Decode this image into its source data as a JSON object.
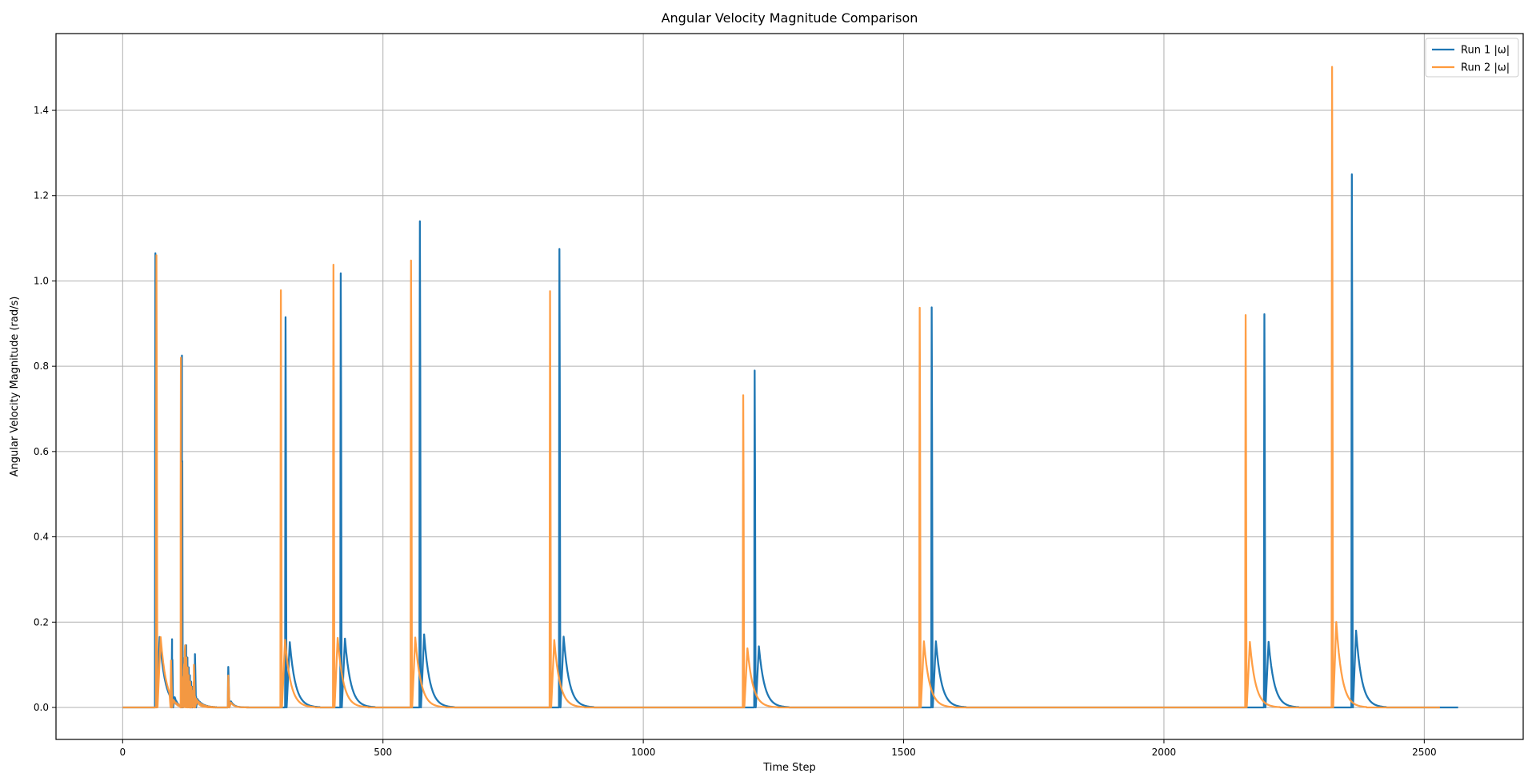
{
  "chart_data": {
    "type": "line",
    "title": "Angular Velocity Magnitude Comparison",
    "xlabel": "Time Step",
    "ylabel": "Angular Velocity Magnitude (rad/s)",
    "xlim": [
      -128,
      2690
    ],
    "ylim": [
      -0.075,
      1.58
    ],
    "x_ticks": [
      0,
      500,
      1000,
      1500,
      2000,
      2500
    ],
    "y_ticks": [
      0.0,
      0.2,
      0.4,
      0.6,
      0.8,
      1.0,
      1.2,
      1.4
    ],
    "y_tick_labels": [
      "0.0",
      "0.2",
      "0.4",
      "0.6",
      "0.8",
      "1.0",
      "1.2",
      "1.4"
    ],
    "grid": true,
    "legend": {
      "position": "top-right"
    },
    "series": [
      {
        "name": "Run 1 |ω|",
        "color": "#1f77b4",
        "x_end": 2565,
        "events": [
          [
            62,
            1.065
          ],
          [
            94,
            0.16
          ],
          [
            113,
            0.825
          ],
          [
            138,
            0.125
          ],
          [
            202,
            0.095
          ],
          [
            312,
            0.915
          ],
          [
            418,
            1.018
          ],
          [
            570,
            1.14
          ],
          [
            838,
            1.075
          ],
          [
            1213,
            0.79
          ],
          [
            1553,
            0.938
          ],
          [
            2192,
            0.922
          ],
          [
            2360,
            1.25
          ]
        ]
      },
      {
        "name": "Run 2 |ω|",
        "color": "#ff9a3c",
        "x_end": 2530,
        "events": [
          [
            64,
            1.06
          ],
          [
            92,
            0.11
          ],
          [
            111,
            0.82
          ],
          [
            136,
            0.1
          ],
          [
            202,
            0.075
          ],
          [
            303,
            0.978
          ],
          [
            404,
            1.038
          ],
          [
            553,
            1.048
          ],
          [
            820,
            0.976
          ],
          [
            1191,
            0.732
          ],
          [
            1530,
            0.937
          ],
          [
            2156,
            0.92
          ],
          [
            2322,
            1.502
          ]
        ]
      }
    ]
  }
}
